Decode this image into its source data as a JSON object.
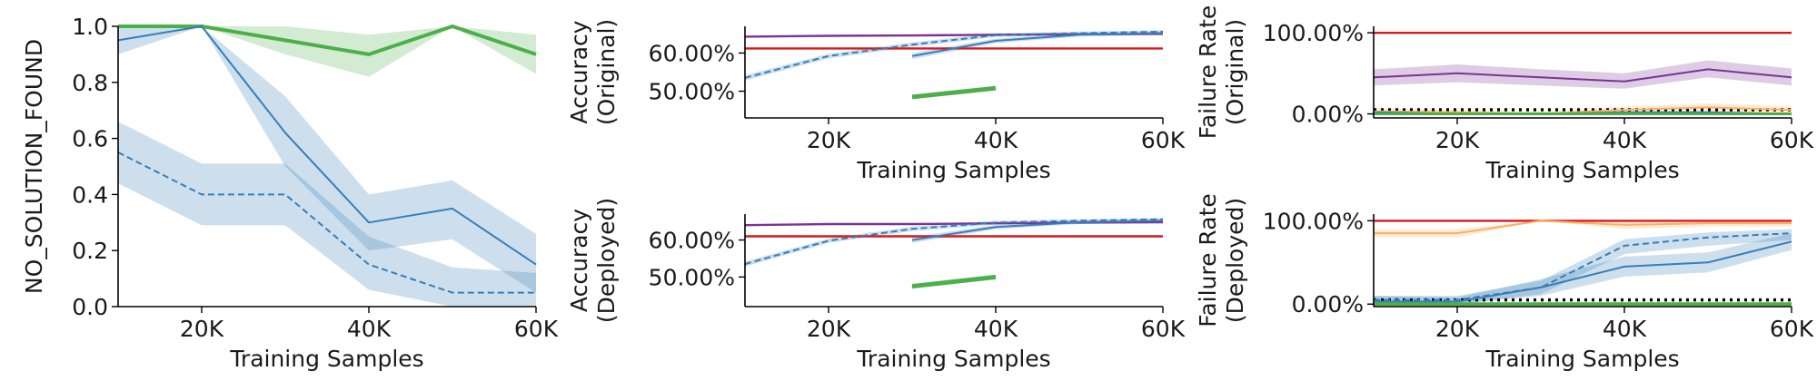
{
  "chart_data": [
    {
      "panel": "no-solution",
      "type": "line",
      "xlabel": "Training Samples",
      "ylabel": "NO_SOLUTION_FOUND",
      "xlim": [
        10000,
        60000
      ],
      "ylim": [
        0,
        1.0
      ],
      "x_ticks": [
        20000,
        40000,
        60000
      ],
      "x_tick_labels": [
        "20K",
        "40K",
        "60K"
      ],
      "y_ticks": [
        0,
        0.2,
        0.4,
        0.6,
        0.8,
        1.0
      ],
      "y_tick_labels": [
        "0.0",
        "0.2",
        "0.4",
        "0.6",
        "0.8",
        "1.0"
      ],
      "series": [
        {
          "color": "#4daf4a",
          "dash": "solid",
          "width": 4,
          "x": [
            10000,
            20000,
            30000,
            40000,
            50000,
            60000
          ],
          "values": [
            1.0,
            1.0,
            0.95,
            0.9,
            1.0,
            0.9
          ],
          "lower": [
            1.0,
            1.0,
            0.9,
            0.82,
            1.0,
            0.83
          ],
          "upper": [
            1.0,
            1.0,
            1.0,
            0.97,
            1.0,
            0.97
          ]
        },
        {
          "color": "#377eb8",
          "dash": "solid",
          "width": 2,
          "x": [
            10000,
            20000,
            30000,
            40000,
            50000,
            60000
          ],
          "values": [
            0.95,
            1.0,
            0.62,
            0.3,
            0.35,
            0.15
          ],
          "lower": [
            0.9,
            1.0,
            0.5,
            0.2,
            0.24,
            0.05
          ],
          "upper": [
            1.0,
            1.0,
            0.75,
            0.4,
            0.45,
            0.26
          ]
        },
        {
          "color": "#377eb8",
          "dash": "dashed",
          "width": 2,
          "x": [
            10000,
            20000,
            30000,
            40000,
            50000,
            60000
          ],
          "values": [
            0.55,
            0.4,
            0.4,
            0.15,
            0.05,
            0.05
          ],
          "lower": [
            0.44,
            0.29,
            0.29,
            0.06,
            0.0,
            0.0
          ],
          "upper": [
            0.66,
            0.51,
            0.51,
            0.25,
            0.14,
            0.12
          ]
        }
      ]
    },
    {
      "panel": "accuracy-original",
      "type": "line",
      "xlabel": "Training Samples",
      "ylabel": "Accuracy\n(Original)",
      "xlim": [
        10000,
        60000
      ],
      "ylim": [
        0.43,
        0.67
      ],
      "x_ticks": [
        20000,
        40000,
        60000
      ],
      "x_tick_labels": [
        "20K",
        "40K",
        "60K"
      ],
      "y_ticks": [
        0.5,
        0.6
      ],
      "y_tick_labels": [
        "50.00%",
        "60.00%"
      ],
      "series": [
        {
          "color": "#7b3294",
          "dash": "solid",
          "width": 2.4,
          "x": [
            10000,
            20000,
            30000,
            40000,
            50000,
            60000
          ],
          "values": [
            0.643,
            0.645,
            0.646,
            0.648,
            0.649,
            0.65
          ]
        },
        {
          "color": "#d7191c",
          "dash": "solid",
          "width": 2.4,
          "x": [
            10000,
            20000,
            30000,
            40000,
            50000,
            60000
          ],
          "values": [
            0.612,
            0.612,
            0.612,
            0.612,
            0.612,
            0.612
          ]
        },
        {
          "color": "#377eb8",
          "dash": "dashed",
          "width": 2,
          "x": [
            10000,
            20000,
            30000,
            40000,
            50000,
            60000
          ],
          "values": [
            0.535,
            0.592,
            0.622,
            0.647,
            0.652,
            0.656
          ],
          "lower": [
            0.528,
            0.586,
            0.616,
            0.642,
            0.648,
            0.652
          ],
          "upper": [
            0.542,
            0.598,
            0.628,
            0.652,
            0.656,
            0.66
          ]
        },
        {
          "color": "#377eb8",
          "dash": "solid",
          "width": 2,
          "x": [
            30000,
            40000,
            50000,
            60000
          ],
          "values": [
            0.592,
            0.632,
            0.648,
            0.652
          ],
          "lower": [
            0.584,
            0.626,
            0.643,
            0.648
          ],
          "upper": [
            0.6,
            0.638,
            0.653,
            0.656
          ]
        },
        {
          "color": "#4daf4a",
          "dash": "solid",
          "width": 5,
          "x": [
            30000,
            40000
          ],
          "values": [
            0.485,
            0.508
          ]
        }
      ]
    },
    {
      "panel": "failure-original",
      "type": "line",
      "xlabel": "Training Samples",
      "ylabel": "Failure Rate\n(Original)",
      "xlim": [
        10000,
        60000
      ],
      "ylim": [
        -0.05,
        1.08
      ],
      "x_ticks": [
        20000,
        40000,
        60000
      ],
      "x_tick_labels": [
        "20K",
        "40K",
        "60K"
      ],
      "y_ticks": [
        0,
        1.0
      ],
      "y_tick_labels": [
        "0.00%",
        "100.00%"
      ],
      "reference_line": {
        "value": 0.05,
        "color": "#000000",
        "style": "dotted"
      },
      "series": [
        {
          "color": "#d7191c",
          "dash": "solid",
          "width": 2.4,
          "x": [
            10000,
            20000,
            30000,
            40000,
            50000,
            60000
          ],
          "values": [
            1.0,
            1.0,
            1.0,
            1.0,
            1.0,
            1.0
          ]
        },
        {
          "color": "#7b3294",
          "dash": "solid",
          "width": 2,
          "x": [
            10000,
            20000,
            30000,
            40000,
            50000,
            60000
          ],
          "values": [
            0.45,
            0.5,
            0.45,
            0.4,
            0.55,
            0.45
          ],
          "lower": [
            0.35,
            0.39,
            0.35,
            0.31,
            0.45,
            0.35
          ],
          "upper": [
            0.55,
            0.61,
            0.55,
            0.5,
            0.66,
            0.56
          ]
        },
        {
          "color": "#fdae61",
          "dash": "solid",
          "width": 2,
          "x": [
            10000,
            20000,
            30000,
            40000,
            50000,
            60000
          ],
          "values": [
            0.03,
            0.02,
            0.0,
            0.05,
            0.08,
            0.05
          ],
          "lower": [
            0.0,
            0.0,
            0.0,
            0.01,
            0.03,
            0.01
          ],
          "upper": [
            0.07,
            0.05,
            0.03,
            0.09,
            0.13,
            0.09
          ]
        },
        {
          "color": "#377eb8",
          "dash": "solid",
          "width": 2,
          "x": [
            10000,
            20000,
            30000,
            40000,
            50000,
            60000
          ],
          "values": [
            0.02,
            0.0,
            0.0,
            0.02,
            0.02,
            0.0
          ]
        },
        {
          "color": "#377eb8",
          "dash": "dashed",
          "width": 2,
          "x": [
            10000,
            20000,
            30000,
            40000,
            50000,
            60000
          ],
          "values": [
            0.0,
            0.0,
            0.0,
            0.0,
            0.0,
            0.0
          ]
        },
        {
          "color": "#4daf4a",
          "dash": "solid",
          "width": 3,
          "x": [
            10000,
            20000,
            30000,
            40000,
            50000,
            60000
          ],
          "values": [
            0.0,
            0.0,
            0.0,
            0.0,
            0.0,
            0.0
          ]
        }
      ]
    },
    {
      "panel": "accuracy-deployed",
      "type": "line",
      "xlabel": "Training Samples",
      "ylabel": "Accuracy\n(Deployed)",
      "xlim": [
        10000,
        60000
      ],
      "ylim": [
        0.42,
        0.67
      ],
      "x_ticks": [
        20000,
        40000,
        60000
      ],
      "x_tick_labels": [
        "20K",
        "40K",
        "60K"
      ],
      "y_ticks": [
        0.5,
        0.6
      ],
      "y_tick_labels": [
        "50.00%",
        "60.00%"
      ],
      "series": [
        {
          "color": "#7b3294",
          "dash": "solid",
          "width": 2.4,
          "x": [
            10000,
            20000,
            30000,
            40000,
            50000,
            60000
          ],
          "values": [
            0.64,
            0.643,
            0.643,
            0.645,
            0.647,
            0.648
          ]
        },
        {
          "color": "#d7191c",
          "dash": "solid",
          "width": 2.4,
          "x": [
            10000,
            20000,
            30000,
            40000,
            50000,
            60000
          ],
          "values": [
            0.61,
            0.61,
            0.61,
            0.61,
            0.61,
            0.61
          ]
        },
        {
          "color": "#377eb8",
          "dash": "dashed",
          "width": 2,
          "x": [
            10000,
            20000,
            30000,
            40000,
            50000,
            60000
          ],
          "values": [
            0.535,
            0.598,
            0.63,
            0.647,
            0.652,
            0.656
          ],
          "lower": [
            0.528,
            0.592,
            0.624,
            0.642,
            0.648,
            0.652
          ],
          "upper": [
            0.542,
            0.604,
            0.636,
            0.652,
            0.656,
            0.66
          ]
        },
        {
          "color": "#377eb8",
          "dash": "solid",
          "width": 2,
          "x": [
            30000,
            40000,
            50000,
            60000
          ],
          "values": [
            0.6,
            0.635,
            0.648,
            0.652
          ],
          "lower": [
            0.592,
            0.629,
            0.643,
            0.648
          ],
          "upper": [
            0.608,
            0.641,
            0.653,
            0.656
          ]
        },
        {
          "color": "#4daf4a",
          "dash": "solid",
          "width": 5,
          "x": [
            30000,
            40000
          ],
          "values": [
            0.475,
            0.5
          ]
        }
      ]
    },
    {
      "panel": "failure-deployed",
      "type": "line",
      "xlabel": "Training Samples",
      "ylabel": "Failure Rate\n(Deployed)",
      "xlim": [
        10000,
        60000
      ],
      "ylim": [
        -0.03,
        1.08
      ],
      "x_ticks": [
        20000,
        40000,
        60000
      ],
      "x_tick_labels": [
        "20K",
        "40K",
        "60K"
      ],
      "y_ticks": [
        0,
        1.0
      ],
      "y_tick_labels": [
        "0.00%",
        "100.00%"
      ],
      "reference_line": {
        "value": 0.05,
        "color": "#000000",
        "style": "dotted"
      },
      "series": [
        {
          "color": "#d7191c",
          "dash": "solid",
          "width": 2.4,
          "x": [
            10000,
            20000,
            30000,
            40000,
            50000,
            60000
          ],
          "values": [
            1.0,
            1.0,
            1.0,
            1.0,
            1.0,
            1.0
          ]
        },
        {
          "color": "#fdae61",
          "dash": "solid",
          "width": 2,
          "x": [
            10000,
            20000,
            30000,
            40000,
            50000,
            60000
          ],
          "values": [
            0.85,
            0.85,
            1.0,
            0.95,
            0.97,
            0.97
          ],
          "lower": [
            0.8,
            0.8,
            1.0,
            0.9,
            0.93,
            0.93
          ],
          "upper": [
            0.9,
            0.9,
            1.0,
            0.99,
            1.0,
            1.0
          ]
        },
        {
          "color": "#377eb8",
          "dash": "dashed",
          "width": 2,
          "x": [
            10000,
            20000,
            30000,
            40000,
            50000,
            60000
          ],
          "values": [
            0.05,
            0.05,
            0.2,
            0.7,
            0.8,
            0.85
          ],
          "lower": [
            0.0,
            0.0,
            0.12,
            0.6,
            0.7,
            0.77
          ],
          "upper": [
            0.1,
            0.1,
            0.28,
            0.78,
            0.86,
            0.9
          ]
        },
        {
          "color": "#377eb8",
          "dash": "solid",
          "width": 2,
          "x": [
            10000,
            20000,
            30000,
            40000,
            50000,
            60000
          ],
          "values": [
            0.03,
            0.03,
            0.2,
            0.45,
            0.5,
            0.75
          ],
          "lower": [
            0.0,
            0.0,
            0.1,
            0.33,
            0.38,
            0.65
          ],
          "upper": [
            0.1,
            0.08,
            0.3,
            0.57,
            0.62,
            0.85
          ]
        },
        {
          "color": "#4daf4a",
          "dash": "solid",
          "width": 4,
          "x": [
            10000,
            20000,
            30000,
            40000,
            50000,
            60000
          ],
          "values": [
            0.0,
            0.0,
            0.0,
            0.0,
            0.0,
            0.0
          ]
        }
      ]
    }
  ]
}
